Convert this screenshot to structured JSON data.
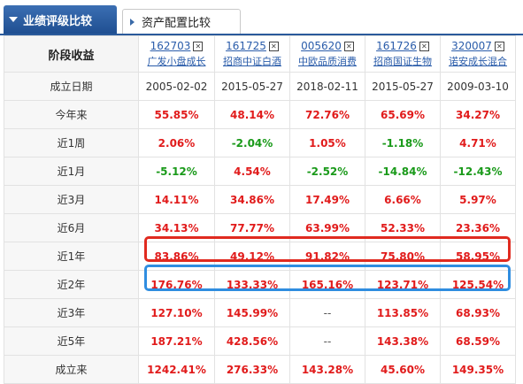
{
  "tabs": {
    "active": "业绩评级比较",
    "inactive": "资产配置比较"
  },
  "table": {
    "header_label": "阶段收益",
    "funds": [
      {
        "code": "162703",
        "name": "广发小盘成长"
      },
      {
        "code": "161725",
        "name": "招商中证白酒"
      },
      {
        "code": "005620",
        "name": "中欧品质消费"
      },
      {
        "code": "161726",
        "name": "招商国证生物"
      },
      {
        "code": "320007",
        "name": "诺安成长混合"
      }
    ],
    "rows": [
      {
        "label": "成立日期",
        "values": [
          "2005-02-02",
          "2015-05-27",
          "2018-02-11",
          "2015-05-27",
          "2009-03-10"
        ],
        "colors": [
          "date",
          "date",
          "date",
          "date",
          "date"
        ]
      },
      {
        "label": "今年来",
        "values": [
          "55.85%",
          "48.14%",
          "72.76%",
          "65.69%",
          "34.27%"
        ],
        "colors": [
          "red",
          "red",
          "red",
          "red",
          "red"
        ]
      },
      {
        "label": "近1周",
        "values": [
          "2.06%",
          "-2.04%",
          "1.05%",
          "-1.18%",
          "4.71%"
        ],
        "colors": [
          "red",
          "green",
          "red",
          "green",
          "red"
        ]
      },
      {
        "label": "近1月",
        "values": [
          "-5.12%",
          "4.54%",
          "-2.52%",
          "-14.84%",
          "-12.43%"
        ],
        "colors": [
          "green",
          "red",
          "green",
          "green",
          "green"
        ]
      },
      {
        "label": "近3月",
        "values": [
          "14.11%",
          "34.86%",
          "17.49%",
          "6.66%",
          "5.97%"
        ],
        "colors": [
          "red",
          "red",
          "red",
          "red",
          "red"
        ]
      },
      {
        "label": "近6月",
        "values": [
          "34.13%",
          "77.77%",
          "63.99%",
          "52.33%",
          "23.36%"
        ],
        "colors": [
          "red",
          "red",
          "red",
          "red",
          "red"
        ]
      },
      {
        "label": "近1年",
        "values": [
          "83.86%",
          "49.12%",
          "91.82%",
          "75.80%",
          "58.95%"
        ],
        "colors": [
          "red",
          "red",
          "red",
          "red",
          "red"
        ]
      },
      {
        "label": "近2年",
        "values": [
          "176.76%",
          "133.33%",
          "165.16%",
          "123.71%",
          "125.54%"
        ],
        "colors": [
          "red",
          "red",
          "red",
          "red",
          "red"
        ]
      },
      {
        "label": "近3年",
        "values": [
          "127.10%",
          "145.99%",
          "--",
          "113.85%",
          "68.93%"
        ],
        "colors": [
          "red",
          "red",
          "gray",
          "red",
          "red"
        ]
      },
      {
        "label": "近5年",
        "values": [
          "187.21%",
          "428.56%",
          "--",
          "143.38%",
          "68.59%"
        ],
        "colors": [
          "red",
          "red",
          "gray",
          "red",
          "red"
        ]
      },
      {
        "label": "成立来",
        "values": [
          "1242.41%",
          "276.33%",
          "143.28%",
          "45.60%",
          "149.35%"
        ],
        "colors": [
          "red",
          "red",
          "red",
          "red",
          "red"
        ]
      }
    ]
  },
  "highlights": {
    "red_row": "近1年",
    "blue_row": "近2年",
    "red_color": "#e02a1f",
    "blue_color": "#2f8de0"
  },
  "icons": {
    "remove": "close-box-icon",
    "tab_active": "triangle-down-icon",
    "tab_inactive": "triangle-right-icon"
  }
}
